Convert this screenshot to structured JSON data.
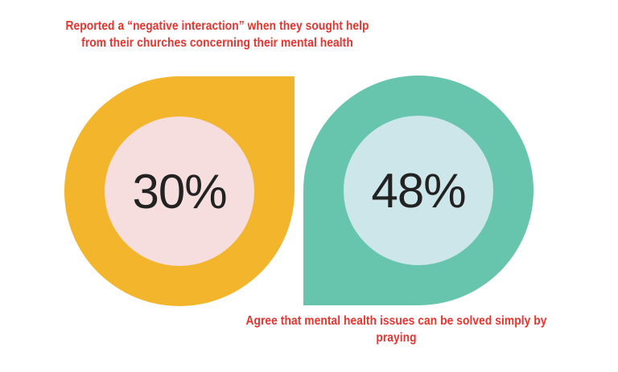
{
  "stats": [
    {
      "value": "30%",
      "percent": 30,
      "caption": "Reported a “negative interaction” when they sought help from their churches concerning their mental health",
      "shape_color": "#f2b52b",
      "inner_color": "#f7dede"
    },
    {
      "value": "48%",
      "percent": 48,
      "caption": "Agree that mental health issues can be solved simply by praying",
      "shape_color": "#67c4ad",
      "inner_color": "#cde6ea"
    }
  ],
  "colors": {
    "caption_text": "#e8342c",
    "value_text": "#222222"
  }
}
